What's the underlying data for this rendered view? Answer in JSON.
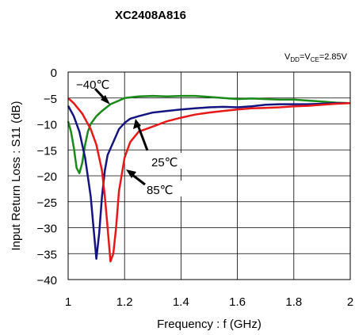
{
  "chart_data": {
    "type": "line",
    "title": "XC2408A816",
    "condition": {
      "v": "V",
      "dd": "DD",
      "eq": "=V",
      "ce": "CE",
      "value": "=2.85V"
    },
    "xlabel": "Frequency : f (GHz)",
    "ylabel": "Input  Return Loss : S11 (dB)",
    "xlim": [
      1,
      2
    ],
    "ylim": [
      -40,
      0
    ],
    "xticks": [
      1,
      1.2,
      1.4,
      1.6,
      1.8,
      2
    ],
    "xtick_labels": [
      "1",
      "1.2",
      "1.4",
      "1.6",
      "1.8",
      "2"
    ],
    "yticks": [
      0,
      -5,
      -10,
      -15,
      -20,
      -25,
      -30,
      -35,
      -40
    ],
    "ytick_labels": [
      "0",
      "−5",
      "−10",
      "−15",
      "−20",
      "−25",
      "−30",
      "−35",
      "−40"
    ],
    "grid": true,
    "series": [
      {
        "name": "−40℃",
        "color": "#1a8a1a",
        "x": [
          1.0,
          1.01,
          1.02,
          1.03,
          1.04,
          1.05,
          1.06,
          1.07,
          1.08,
          1.1,
          1.12,
          1.15,
          1.18,
          1.2,
          1.25,
          1.3,
          1.35,
          1.4,
          1.45,
          1.5,
          1.55,
          1.6,
          1.65,
          1.7,
          1.75,
          1.8,
          1.85,
          1.9,
          1.95,
          2.0
        ],
        "y": [
          -9.5,
          -11.5,
          -14.5,
          -18.5,
          -19.5,
          -17.5,
          -14.0,
          -11.5,
          -10.0,
          -8.5,
          -7.5,
          -6.2,
          -5.5,
          -5.0,
          -4.7,
          -4.6,
          -4.7,
          -4.6,
          -4.6,
          -4.8,
          -5.0,
          -5.2,
          -5.1,
          -5.2,
          -5.3,
          -5.3,
          -5.5,
          -5.7,
          -5.9,
          -6.0
        ]
      },
      {
        "name": "25℃",
        "color": "#141480",
        "x": [
          1.0,
          1.02,
          1.04,
          1.06,
          1.08,
          1.09,
          1.1,
          1.11,
          1.12,
          1.13,
          1.14,
          1.16,
          1.18,
          1.2,
          1.22,
          1.25,
          1.3,
          1.35,
          1.4,
          1.45,
          1.5,
          1.55,
          1.6,
          1.65,
          1.7,
          1.75,
          1.8,
          1.85,
          1.9,
          1.95,
          2.0
        ],
        "y": [
          -6.5,
          -8.5,
          -11.5,
          -16.5,
          -24.0,
          -30.0,
          -36.0,
          -31.0,
          -24.0,
          -19.0,
          -16.0,
          -13.5,
          -11.0,
          -9.8,
          -9.0,
          -8.5,
          -7.8,
          -7.5,
          -7.2,
          -7.0,
          -6.8,
          -6.7,
          -6.8,
          -6.6,
          -6.3,
          -6.2,
          -6.2,
          -6.2,
          -6.1,
          -6.0,
          -6.0
        ]
      },
      {
        "name": "85℃",
        "color": "#e81818",
        "x": [
          1.0,
          1.02,
          1.05,
          1.08,
          1.1,
          1.12,
          1.13,
          1.14,
          1.15,
          1.16,
          1.17,
          1.18,
          1.2,
          1.22,
          1.25,
          1.3,
          1.35,
          1.4,
          1.45,
          1.5,
          1.55,
          1.6,
          1.65,
          1.7,
          1.75,
          1.8,
          1.85,
          1.9,
          1.95,
          2.0
        ],
        "y": [
          -5.0,
          -6.0,
          -8.0,
          -11.0,
          -14.0,
          -19.0,
          -24.0,
          -30.0,
          -36.5,
          -35.0,
          -30.0,
          -23.0,
          -16.5,
          -13.5,
          -11.5,
          -10.5,
          -9.5,
          -8.8,
          -8.2,
          -7.8,
          -7.5,
          -7.2,
          -7.0,
          -6.9,
          -6.8,
          -6.6,
          -6.5,
          -6.3,
          -6.1,
          -6.0
        ]
      }
    ],
    "annotations": [
      "−40℃",
      "25℃",
      "85℃"
    ]
  }
}
